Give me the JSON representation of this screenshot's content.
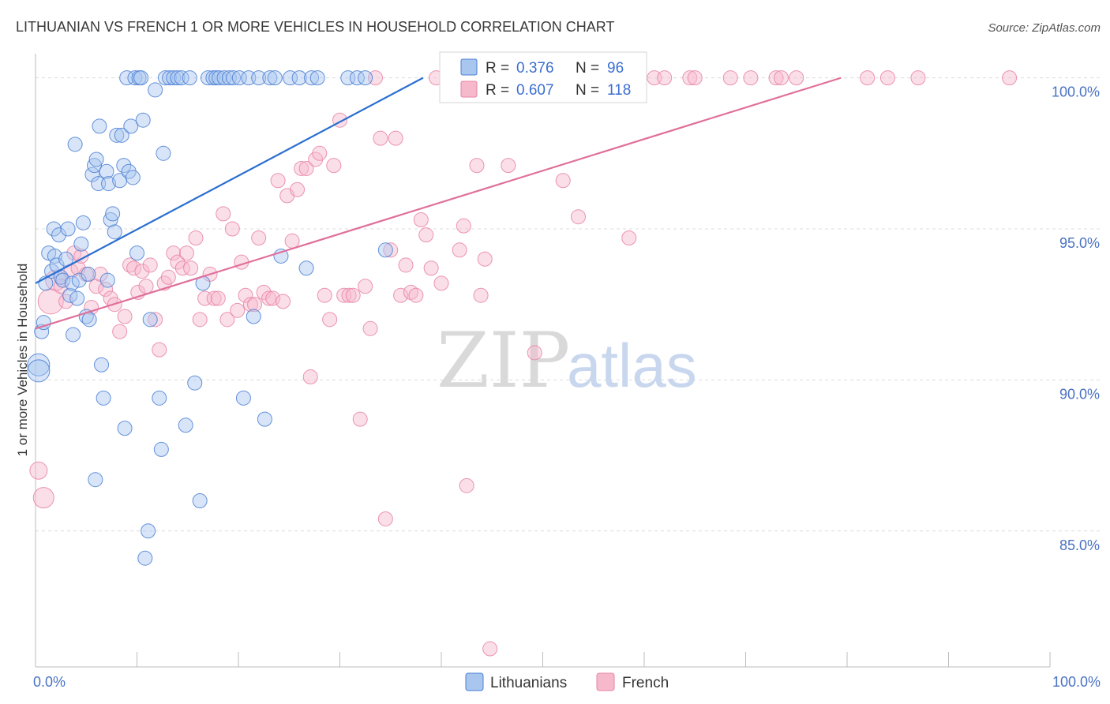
{
  "title": "LITHUANIAN VS FRENCH 1 OR MORE VEHICLES IN HOUSEHOLD CORRELATION CHART",
  "source": "Source: ZipAtlas.com",
  "watermark": {
    "zip": "ZIP",
    "atlas": "atlas"
  },
  "colors": {
    "lithuanians_fill": "#a9c6ef",
    "lithuanians_stroke": "#4a7fd4",
    "lithuanians_line": "#2a6fd1",
    "french_fill": "#f6b9cb",
    "french_stroke": "#e883a3",
    "french_line": "#e0709a",
    "grid": "#dcdcdc",
    "tick_label": "#4a72c4"
  },
  "stats": [
    {
      "r_label": "R =",
      "r_value": "0.376",
      "n_label": "N =",
      "n_value": "96"
    },
    {
      "r_label": "R =",
      "r_value": "0.607",
      "n_label": "N =",
      "n_value": "118"
    }
  ],
  "chart_data": {
    "type": "scatter",
    "title": "LITHUANIAN VS FRENCH 1 OR MORE VEHICLES IN HOUSEHOLD CORRELATION CHART",
    "xlabel": "",
    "ylabel": "1 or more Vehicles in Household",
    "xlim": [
      0,
      100
    ],
    "ylim": [
      80.5,
      100.8
    ],
    "x_tick_labels": [
      "0.0%",
      "100.0%"
    ],
    "y_ticks": [
      85,
      90,
      95,
      100
    ],
    "y_tick_labels": [
      "85.0%",
      "90.0%",
      "95.0%",
      "100.0%"
    ],
    "grid": true,
    "legend_position": "bottom-center",
    "series": [
      {
        "name": "Lithuanians",
        "r": 0.376,
        "n": 96,
        "trend": {
          "x": [
            0,
            38.2
          ],
          "y": [
            93.2,
            100.0
          ]
        },
        "points": [
          [
            0.3,
            90.5,
            14
          ],
          [
            0.3,
            90.3,
            14
          ],
          [
            0.6,
            91.6,
            9
          ],
          [
            0.8,
            91.9,
            9
          ],
          [
            1.0,
            93.2,
            9
          ],
          [
            1.3,
            94.2,
            9
          ],
          [
            1.6,
            93.6,
            9
          ],
          [
            1.8,
            95.0,
            9
          ],
          [
            1.9,
            94.1,
            9
          ],
          [
            2.1,
            93.8,
            9
          ],
          [
            2.3,
            94.8,
            9
          ],
          [
            2.5,
            93.4,
            9
          ],
          [
            2.7,
            93.3,
            9
          ],
          [
            3.0,
            94.0,
            9
          ],
          [
            3.2,
            95.0,
            9
          ],
          [
            3.4,
            92.8,
            9
          ],
          [
            3.6,
            93.2,
            9
          ],
          [
            3.7,
            91.5,
            9
          ],
          [
            3.9,
            97.8,
            9
          ],
          [
            4.1,
            92.7,
            9
          ],
          [
            4.3,
            93.3,
            9
          ],
          [
            4.5,
            94.5,
            9
          ],
          [
            4.7,
            95.2,
            9
          ],
          [
            5.0,
            92.1,
            9
          ],
          [
            5.2,
            93.5,
            9
          ],
          [
            5.3,
            92.0,
            9
          ],
          [
            5.6,
            96.8,
            9
          ],
          [
            5.8,
            97.1,
            9
          ],
          [
            5.9,
            86.7,
            9
          ],
          [
            6.0,
            97.3,
            9
          ],
          [
            6.2,
            96.5,
            9
          ],
          [
            6.3,
            98.4,
            9
          ],
          [
            6.5,
            90.5,
            9
          ],
          [
            6.7,
            89.4,
            9
          ],
          [
            7.0,
            96.9,
            9
          ],
          [
            7.1,
            93.3,
            9
          ],
          [
            7.2,
            96.5,
            9
          ],
          [
            7.4,
            95.3,
            9
          ],
          [
            7.6,
            95.5,
            9
          ],
          [
            7.8,
            94.9,
            9
          ],
          [
            8.0,
            98.1,
            9
          ],
          [
            8.3,
            96.6,
            9
          ],
          [
            8.5,
            98.1,
            9
          ],
          [
            8.7,
            97.1,
            9
          ],
          [
            8.8,
            88.4,
            9
          ],
          [
            9.0,
            100.0,
            9
          ],
          [
            9.2,
            96.9,
            9
          ],
          [
            9.4,
            98.4,
            9
          ],
          [
            9.6,
            96.7,
            9
          ],
          [
            9.8,
            100.0,
            9
          ],
          [
            10.0,
            94.2,
            9
          ],
          [
            10.2,
            100.0,
            9
          ],
          [
            10.4,
            100.0,
            9
          ],
          [
            10.6,
            98.6,
            9
          ],
          [
            10.8,
            84.1,
            9
          ],
          [
            11.1,
            85.0,
            9
          ],
          [
            11.3,
            92.0,
            9
          ],
          [
            11.8,
            99.6,
            9
          ],
          [
            12.2,
            89.4,
            9
          ],
          [
            12.4,
            87.7,
            9
          ],
          [
            12.6,
            97.5,
            9
          ],
          [
            12.8,
            100.0,
            9
          ],
          [
            13.2,
            100.0,
            9
          ],
          [
            13.6,
            100.0,
            9
          ],
          [
            14.0,
            100.0,
            9
          ],
          [
            14.4,
            100.0,
            9
          ],
          [
            14.8,
            88.5,
            9
          ],
          [
            15.2,
            100.0,
            9
          ],
          [
            15.7,
            89.9,
            9
          ],
          [
            16.2,
            86.0,
            9
          ],
          [
            16.5,
            93.2,
            9
          ],
          [
            17.0,
            100.0,
            9
          ],
          [
            17.5,
            100.0,
            9
          ],
          [
            17.8,
            100.0,
            9
          ],
          [
            18.1,
            100.0,
            9
          ],
          [
            18.6,
            100.0,
            9
          ],
          [
            19.1,
            100.0,
            9
          ],
          [
            19.5,
            100.0,
            9
          ],
          [
            20.1,
            100.0,
            9
          ],
          [
            20.5,
            89.4,
            9
          ],
          [
            21.0,
            100.0,
            9
          ],
          [
            21.5,
            92.1,
            9
          ],
          [
            22.0,
            100.0,
            9
          ],
          [
            22.6,
            88.7,
            9
          ],
          [
            23.1,
            100.0,
            9
          ],
          [
            23.6,
            100.0,
            9
          ],
          [
            24.2,
            94.1,
            9
          ],
          [
            25.1,
            100.0,
            9
          ],
          [
            26.0,
            100.0,
            9
          ],
          [
            26.7,
            93.7,
            9
          ],
          [
            27.2,
            100.0,
            9
          ],
          [
            27.8,
            100.0,
            9
          ],
          [
            30.8,
            100.0,
            9
          ],
          [
            31.7,
            100.0,
            9
          ],
          [
            32.5,
            100.0,
            9
          ],
          [
            34.5,
            94.3,
            9
          ]
        ]
      },
      {
        "name": "French",
        "r": 0.607,
        "n": 118,
        "trend": {
          "x": [
            0,
            79.4
          ],
          "y": [
            91.7,
            100.0
          ]
        },
        "points": [
          [
            0.3,
            87.0,
            11
          ],
          [
            0.8,
            86.1,
            13
          ],
          [
            1.5,
            92.6,
            16
          ],
          [
            2.0,
            93.3,
            13
          ],
          [
            2.5,
            93.1,
            9
          ],
          [
            3.0,
            92.6,
            9
          ],
          [
            3.5,
            93.6,
            9
          ],
          [
            3.8,
            94.2,
            9
          ],
          [
            4.2,
            93.7,
            9
          ],
          [
            4.5,
            94.1,
            9
          ],
          [
            5.0,
            93.5,
            9
          ],
          [
            5.5,
            92.4,
            9
          ],
          [
            6.0,
            93.1,
            9
          ],
          [
            6.4,
            93.5,
            9
          ],
          [
            6.9,
            93.0,
            9
          ],
          [
            7.4,
            92.7,
            9
          ],
          [
            7.8,
            92.5,
            9
          ],
          [
            8.3,
            91.6,
            9
          ],
          [
            8.8,
            92.1,
            9
          ],
          [
            9.3,
            93.8,
            9
          ],
          [
            9.7,
            93.7,
            9
          ],
          [
            10.1,
            92.9,
            9
          ],
          [
            10.5,
            93.6,
            9
          ],
          [
            10.9,
            93.1,
            9
          ],
          [
            11.3,
            93.8,
            9
          ],
          [
            11.8,
            92.0,
            9
          ],
          [
            12.2,
            91.0,
            9
          ],
          [
            12.7,
            93.2,
            9
          ],
          [
            13.1,
            93.4,
            9
          ],
          [
            13.6,
            94.2,
            9
          ],
          [
            14.0,
            93.9,
            9
          ],
          [
            14.5,
            93.7,
            9
          ],
          [
            14.9,
            94.2,
            9
          ],
          [
            15.3,
            93.7,
            9
          ],
          [
            15.8,
            94.7,
            9
          ],
          [
            16.2,
            92.0,
            9
          ],
          [
            16.7,
            92.7,
            9
          ],
          [
            17.2,
            93.5,
            9
          ],
          [
            17.6,
            92.7,
            9
          ],
          [
            18.0,
            92.7,
            9
          ],
          [
            18.5,
            95.5,
            9
          ],
          [
            18.9,
            92.0,
            9
          ],
          [
            19.4,
            95.0,
            9
          ],
          [
            19.9,
            92.3,
            9
          ],
          [
            20.3,
            93.9,
            9
          ],
          [
            20.7,
            92.8,
            9
          ],
          [
            21.2,
            92.5,
            9
          ],
          [
            21.6,
            92.5,
            9
          ],
          [
            22.0,
            94.7,
            9
          ],
          [
            22.5,
            92.9,
            9
          ],
          [
            23.0,
            92.7,
            9
          ],
          [
            23.4,
            92.7,
            9
          ],
          [
            23.9,
            96.6,
            9
          ],
          [
            24.4,
            92.6,
            9
          ],
          [
            24.8,
            96.1,
            9
          ],
          [
            25.3,
            94.6,
            9
          ],
          [
            25.8,
            96.3,
            9
          ],
          [
            26.2,
            97.0,
            9
          ],
          [
            26.7,
            97.0,
            9
          ],
          [
            27.1,
            90.1,
            9
          ],
          [
            27.6,
            97.3,
            9
          ],
          [
            28.0,
            97.5,
            9
          ],
          [
            28.5,
            92.8,
            9
          ],
          [
            29.0,
            92.0,
            9
          ],
          [
            29.4,
            97.1,
            9
          ],
          [
            30.0,
            98.6,
            9
          ],
          [
            30.4,
            92.8,
            9
          ],
          [
            30.9,
            92.8,
            9
          ],
          [
            31.3,
            92.8,
            9
          ],
          [
            32.0,
            88.7,
            9
          ],
          [
            32.5,
            93.1,
            9
          ],
          [
            33.0,
            91.7,
            9
          ],
          [
            33.5,
            100.0,
            9
          ],
          [
            34.0,
            98.0,
            9
          ],
          [
            34.5,
            85.4,
            9
          ],
          [
            35.0,
            94.3,
            9
          ],
          [
            35.5,
            98.0,
            9
          ],
          [
            36.0,
            92.8,
            9
          ],
          [
            36.5,
            93.8,
            9
          ],
          [
            37.0,
            92.9,
            9
          ],
          [
            37.5,
            92.8,
            9
          ],
          [
            38.0,
            95.3,
            9
          ],
          [
            38.5,
            94.8,
            9
          ],
          [
            39.0,
            93.7,
            9
          ],
          [
            39.5,
            100.0,
            9
          ],
          [
            40.0,
            93.2,
            9
          ],
          [
            41.0,
            100.0,
            9
          ],
          [
            41.8,
            94.3,
            9
          ],
          [
            42.2,
            95.1,
            9
          ],
          [
            42.5,
            86.5,
            9
          ],
          [
            43.5,
            97.1,
            9
          ],
          [
            43.9,
            92.8,
            9
          ],
          [
            44.3,
            94.0,
            9
          ],
          [
            44.8,
            81.1,
            9
          ],
          [
            45.8,
            100.0,
            9
          ],
          [
            46.6,
            97.1,
            9
          ],
          [
            48.0,
            100.0,
            9
          ],
          [
            49.2,
            90.9,
            9
          ],
          [
            50.0,
            100.0,
            9
          ],
          [
            50.9,
            100.0,
            9
          ],
          [
            52.0,
            96.6,
            9
          ],
          [
            53.0,
            100.0,
            9
          ],
          [
            53.5,
            95.4,
            9
          ],
          [
            55.0,
            100.0,
            9
          ],
          [
            56.0,
            100.0,
            9
          ],
          [
            58.0,
            100.0,
            9
          ],
          [
            58.5,
            94.7,
            9
          ],
          [
            59.5,
            100.0,
            9
          ],
          [
            61.0,
            100.0,
            9
          ],
          [
            62.0,
            100.0,
            9
          ],
          [
            64.5,
            100.0,
            9
          ],
          [
            65.0,
            100.0,
            9
          ],
          [
            68.5,
            100.0,
            9
          ],
          [
            70.5,
            100.0,
            9
          ],
          [
            73.0,
            100.0,
            9
          ],
          [
            73.5,
            100.0,
            9
          ],
          [
            75.0,
            100.0,
            9
          ],
          [
            82.0,
            100.0,
            9
          ],
          [
            84.0,
            100.0,
            9
          ],
          [
            87.0,
            100.0,
            9
          ],
          [
            96.0,
            100.0,
            9
          ]
        ]
      }
    ]
  }
}
